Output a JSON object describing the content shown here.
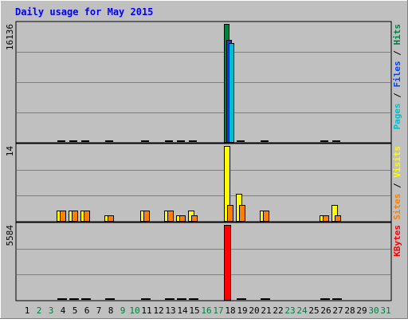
{
  "chart_data": {
    "type": "bar",
    "title": "Daily usage for May 2015",
    "x": [
      "1",
      "2",
      "3",
      "4",
      "5",
      "6",
      "7",
      "8",
      "9",
      "10",
      "11",
      "12",
      "13",
      "14",
      "15",
      "16",
      "17",
      "18",
      "19",
      "20",
      "21",
      "22",
      "23",
      "24",
      "25",
      "26",
      "27",
      "28",
      "29",
      "30",
      "31"
    ],
    "weekend_days": [
      "2",
      "3",
      "9",
      "10",
      "16",
      "17",
      "23",
      "24",
      "30",
      "31"
    ],
    "panels": [
      {
        "name": "hits-files-pages",
        "max_label": "16136",
        "legend": [
          {
            "text": "Pages",
            "color": "#00c0d0"
          },
          {
            "text": " / ",
            "color": "#000000"
          },
          {
            "text": "Files",
            "color": "#0040ff"
          },
          {
            "text": " / ",
            "color": "#000000"
          },
          {
            "text": "Hits",
            "color": "#008040"
          }
        ],
        "series": [
          {
            "name": "Hits",
            "color": "#008040",
            "ymax": 16136,
            "values": [
              0,
              0,
              0,
              20,
              20,
              20,
              0,
              20,
              0,
              0,
              20,
              0,
              20,
              20,
              20,
              0,
              0,
              16136,
              20,
              0,
              20,
              0,
              0,
              0,
              0,
              20,
              20,
              0,
              0,
              0,
              0
            ]
          },
          {
            "name": "Files",
            "color": "#0040ff",
            "ymax": 16136,
            "values": [
              0,
              0,
              0,
              15,
              15,
              15,
              0,
              15,
              0,
              0,
              15,
              0,
              15,
              15,
              15,
              0,
              0,
              14000,
              15,
              0,
              15,
              0,
              0,
              0,
              0,
              15,
              15,
              0,
              0,
              0,
              0
            ]
          },
          {
            "name": "Pages",
            "color": "#00c0d0",
            "ymax": 16136,
            "values": [
              0,
              0,
              0,
              10,
              10,
              10,
              0,
              10,
              0,
              0,
              10,
              0,
              10,
              10,
              10,
              0,
              0,
              13500,
              10,
              0,
              10,
              0,
              0,
              0,
              0,
              10,
              10,
              0,
              0,
              0,
              0
            ]
          }
        ]
      },
      {
        "name": "visits-sites",
        "max_label": "14",
        "legend": [
          {
            "text": "Sites",
            "color": "#ff8000"
          },
          {
            "text": " / ",
            "color": "#000000"
          },
          {
            "text": "Visits",
            "color": "#ffff00"
          }
        ],
        "series": [
          {
            "name": "Visits",
            "color": "#ffff00",
            "ymax": 14,
            "values": [
              0,
              0,
              0,
              2,
              2,
              2,
              0,
              1,
              0,
              0,
              2,
              0,
              2,
              1,
              2,
              0,
              0,
              14,
              5,
              0,
              2,
              0,
              0,
              0,
              0,
              1,
              3,
              0,
              0,
              0,
              0
            ]
          },
          {
            "name": "Sites",
            "color": "#ff8000",
            "ymax": 14,
            "values": [
              0,
              0,
              0,
              2,
              2,
              2,
              0,
              1,
              0,
              0,
              2,
              0,
              2,
              1,
              1,
              0,
              0,
              3,
              3,
              0,
              2,
              0,
              0,
              0,
              0,
              1,
              1,
              0,
              0,
              0,
              0
            ]
          }
        ]
      },
      {
        "name": "kbytes",
        "max_label": "5584",
        "legend": [
          {
            "text": "KBytes",
            "color": "#ff0000"
          }
        ],
        "series": [
          {
            "name": "KBytes",
            "color": "#ff0000",
            "ymax": 5584,
            "values": [
              0,
              0,
              0,
              5,
              5,
              5,
              0,
              5,
              0,
              0,
              5,
              0,
              5,
              5,
              5,
              0,
              0,
              5584,
              5,
              0,
              5,
              0,
              0,
              0,
              0,
              5,
              5,
              0,
              0,
              0,
              0
            ]
          }
        ]
      }
    ],
    "colors": {
      "frame": "#c0c0c0",
      "plot_bg": "#c0c0c0",
      "grid": "#808080",
      "title": "#0000ff",
      "weekday_label": "#000000",
      "weekend_label": "#008040"
    }
  }
}
